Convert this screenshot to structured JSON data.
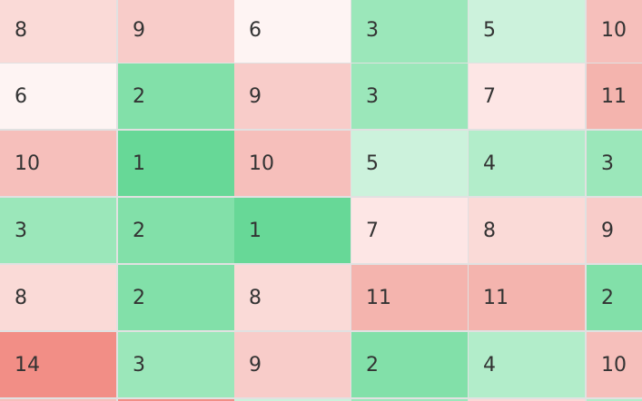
{
  "grid": {
    "rows": [
      [
        "8",
        "9",
        "6",
        "3",
        "5",
        "10"
      ],
      [
        "6",
        "2",
        "9",
        "3",
        "7",
        "11"
      ],
      [
        "10",
        "1",
        "10",
        "5",
        "4",
        "3"
      ],
      [
        "3",
        "2",
        "1",
        "7",
        "8",
        "9"
      ],
      [
        "8",
        "2",
        "8",
        "11",
        "11",
        "2"
      ],
      [
        "14",
        "3",
        "9",
        "2",
        "4",
        "10"
      ]
    ]
  },
  "colors": {
    "1": "#67d897",
    "2": "#82e0a9",
    "3": "#9be7ba",
    "4": "#b2edca",
    "5": "#ccf2dc",
    "6": "#fef4f3",
    "7": "#fde6e5",
    "8": "#fadad7",
    "9": "#f8ccc9",
    "10": "#f6bfbb",
    "11": "#f4b4ae",
    "14": "#f28e86"
  }
}
